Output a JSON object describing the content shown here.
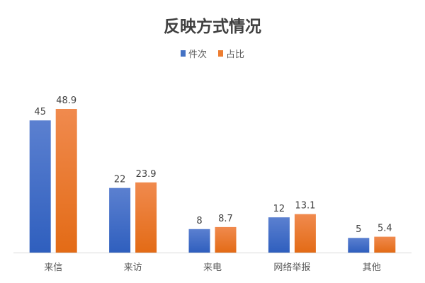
{
  "chart_data": {
    "type": "bar",
    "title": "反映方式情况",
    "categories": [
      "来信",
      "来访",
      "来电",
      "网络举报",
      "其他"
    ],
    "series": [
      {
        "name": "件次",
        "values": [
          45,
          22,
          8,
          12,
          5
        ],
        "labels": [
          "45",
          "22",
          "8",
          "12",
          "5"
        ],
        "color": "#4472C4"
      },
      {
        "name": "占比",
        "values": [
          48.9,
          23.9,
          8.7,
          13.1,
          5.4
        ],
        "labels": [
          "48.9",
          "23.9",
          "8.7",
          "13.1",
          "5.4"
        ],
        "color": "#ED7D31"
      }
    ],
    "ylim": [
      0,
      50
    ],
    "grid": false,
    "legend": "top"
  }
}
